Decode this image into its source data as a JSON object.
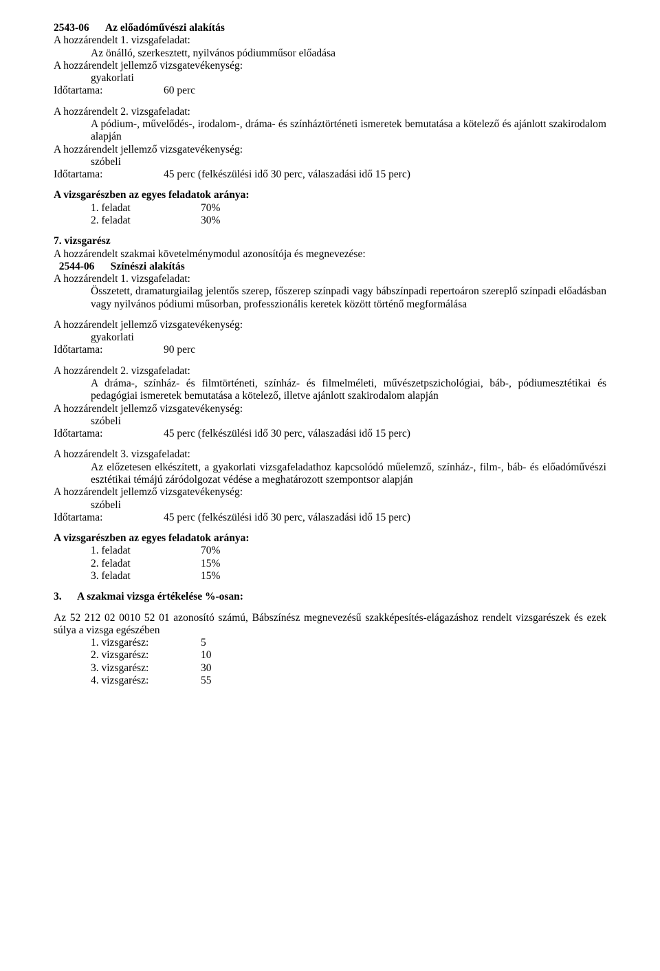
{
  "section2543": {
    "code": "2543-06",
    "title": "Az előadóművészi alakítás",
    "task1": {
      "heading": "A hozzárendelt 1. vizsgafeladat:",
      "desc": "Az önálló, szerkesztett, nyilvános pódiumműsor előadása",
      "activityHeading": "A hozzárendelt jellemző vizsgatevékenység:",
      "activity": "gyakorlati",
      "durationLabel": "Időtartama:",
      "durationValue": "60 perc"
    },
    "task2": {
      "heading": "A hozzárendelt 2. vizsgafeladat:",
      "desc": "A pódium-, művelődés-, irodalom-, dráma- és színháztörténeti ismeretek bemutatása a kötelező és ajánlott szakirodalom alapján",
      "activityHeading": "A hozzárendelt jellemző vizsgatevékenység:",
      "activity": "szóbeli",
      "durationLabel": "Időtartama:",
      "durationValue": "45 perc (felkészülési idő 30 perc, válaszadási idő 15 perc)"
    },
    "weightsHeading": "A vizsgarészben az egyes feladatok aránya:",
    "weights": [
      {
        "label": "1. feladat",
        "value": "70%"
      },
      {
        "label": "2. feladat",
        "value": "30%"
      }
    ]
  },
  "section7": {
    "title": "7. vizsgarész",
    "moduleLine": "A hozzárendelt szakmai követelménymodul azonosítója és megnevezése:",
    "code": "2544-06",
    "codeTitle": "Színészi alakítás",
    "task1": {
      "heading": "A hozzárendelt 1. vizsgafeladat:",
      "desc": "Összetett, dramaturgiailag jelentős szerep, főszerep színpadi vagy bábszínpadi repertoáron szereplő színpadi előadásban vagy nyilvános pódiumi műsorban, professzionális keretek között történő megformálása",
      "activityHeading": "A hozzárendelt jellemző vizsgatevékenység:",
      "activity": "gyakorlati",
      "durationLabel": "Időtartama:",
      "durationValue": "90 perc"
    },
    "task2": {
      "heading": "A hozzárendelt 2. vizsgafeladat:",
      "desc": "A dráma-, színház- és filmtörténeti, színház- és filmelméleti, művészetpszichológiai, báb-, pódiumesztétikai és pedagógiai ismeretek bemutatása a kötelező, illetve ajánlott szakirodalom alapján",
      "activityHeading": "A hozzárendelt jellemző vizsgatevékenység:",
      "activity": "szóbeli",
      "durationLabel": "Időtartama:",
      "durationValue": "45 perc (felkészülési idő 30 perc, válaszadási idő 15 perc)"
    },
    "task3": {
      "heading": "A hozzárendelt 3. vizsgafeladat:",
      "desc": "Az előzetesen elkészített, a gyakorlati vizsgafeladathoz kapcsolódó műelemző, színház-, film-, báb- és előadóművészi esztétikai témájú záródolgozat védése a meghatározott szempontsor alapján",
      "activityHeading": "A hozzárendelt jellemző vizsgatevékenység:",
      "activity": "szóbeli",
      "durationLabel": "Időtartama:",
      "durationValue": "45 perc (felkészülési idő 30 perc, válaszadási idő 15 perc)"
    },
    "weightsHeading": "A vizsgarészben az egyes feladatok aránya:",
    "weights": [
      {
        "label": "1. feladat",
        "value": "70%"
      },
      {
        "label": "2. feladat",
        "value": "15%"
      },
      {
        "label": "3. feladat",
        "value": "15%"
      }
    ]
  },
  "section3": {
    "num": "3.",
    "title": "A szakmai vizsga értékelése %-osan:",
    "paragraph": "Az 52 212 02 0010 52 01 azonosító számú, Bábszínész megnevezésű szakképesítés-elágazáshoz rendelt vizsgarészek és ezek súlya a vizsga egészében",
    "rows": [
      {
        "label": "1. vizsgarész:",
        "value": "5"
      },
      {
        "label": "2. vizsgarész:",
        "value": "10"
      },
      {
        "label": "3. vizsgarész:",
        "value": "30"
      },
      {
        "label": "4. vizsgarész:",
        "value": "55"
      }
    ]
  }
}
